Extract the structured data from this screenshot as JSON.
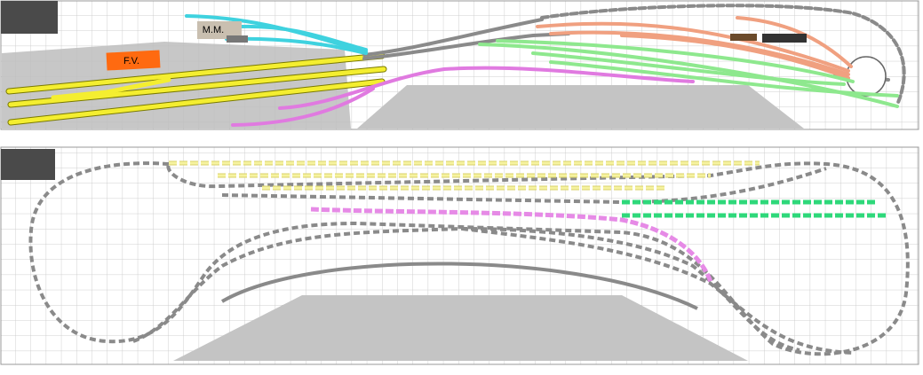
{
  "upper_level": {
    "labels": {
      "station_building": "M.M.",
      "freight_yard": "F.V."
    }
  }
}
